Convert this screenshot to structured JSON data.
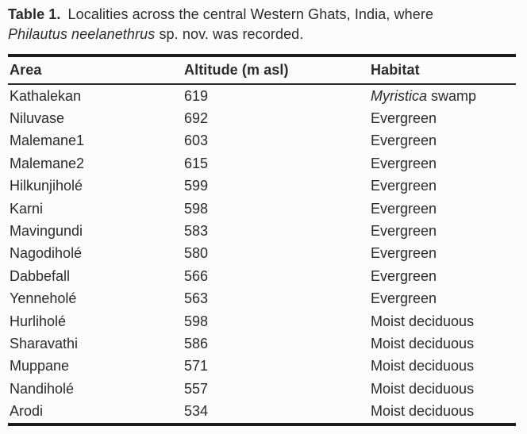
{
  "caption": {
    "label": "Table 1.",
    "line1_rest": "Localities across the central Western Ghats, India, where",
    "species": "Philautus neelanethrus",
    "line2_rest": " sp. nov. was recorded."
  },
  "table": {
    "headers": [
      "Area",
      "Altitude (m asl)",
      "Habitat"
    ],
    "rows": [
      {
        "area": "Kathalekan",
        "altitude": 619,
        "habitat_italic": "Myristica",
        "habitat_plain": " swamp"
      },
      {
        "area": "Niluvase",
        "altitude": 692,
        "habitat_italic": "",
        "habitat_plain": "Evergreen"
      },
      {
        "area": "Malemane1",
        "altitude": 603,
        "habitat_italic": "",
        "habitat_plain": "Evergreen"
      },
      {
        "area": "Malemane2",
        "altitude": 615,
        "habitat_italic": "",
        "habitat_plain": "Evergreen"
      },
      {
        "area": "Hilkunjiholé",
        "altitude": 599,
        "habitat_italic": "",
        "habitat_plain": "Evergreen"
      },
      {
        "area": "Karni",
        "altitude": 598,
        "habitat_italic": "",
        "habitat_plain": "Evergreen"
      },
      {
        "area": "Mavingundi",
        "altitude": 583,
        "habitat_italic": "",
        "habitat_plain": "Evergreen"
      },
      {
        "area": "Nagodiholé",
        "altitude": 580,
        "habitat_italic": "",
        "habitat_plain": "Evergreen"
      },
      {
        "area": "Dabbefall",
        "altitude": 566,
        "habitat_italic": "",
        "habitat_plain": "Evergreen"
      },
      {
        "area": "Yenneholé",
        "altitude": 563,
        "habitat_italic": "",
        "habitat_plain": "Evergreen"
      },
      {
        "area": "Hurliholé",
        "altitude": 598,
        "habitat_italic": "",
        "habitat_plain": "Moist deciduous"
      },
      {
        "area": "Sharavathi",
        "altitude": 586,
        "habitat_italic": "",
        "habitat_plain": "Moist deciduous"
      },
      {
        "area": "Muppane",
        "altitude": 571,
        "habitat_italic": "",
        "habitat_plain": "Moist deciduous"
      },
      {
        "area": "Nandiholé",
        "altitude": 557,
        "habitat_italic": "",
        "habitat_plain": "Moist deciduous"
      },
      {
        "area": "Arodi",
        "altitude": 534,
        "habitat_italic": "",
        "habitat_plain": "Moist deciduous"
      }
    ]
  },
  "colors": {
    "background": "#fcfcfc",
    "text": "#2b2b2b",
    "rule": "#1c1c1c"
  }
}
